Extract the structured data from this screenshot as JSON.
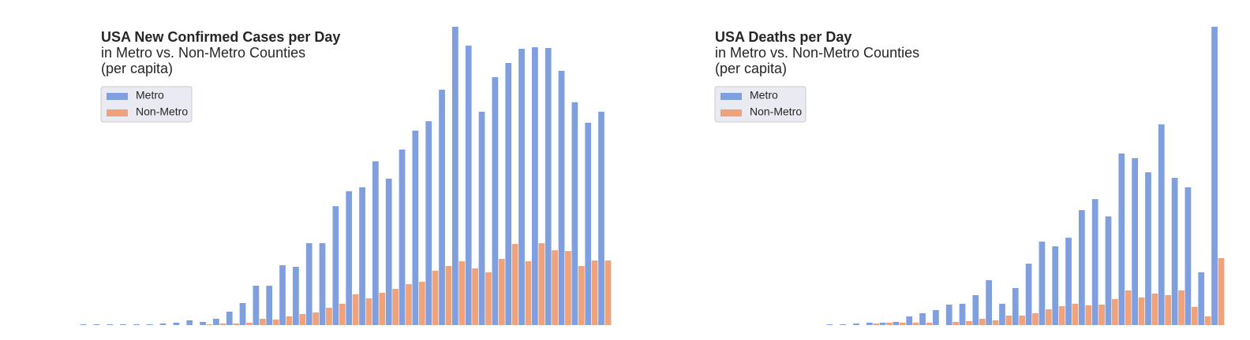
{
  "chart_data": [
    {
      "type": "bar",
      "title": "USA New Confirmed Cases per Day",
      "subtitle": [
        "in Metro vs. Non-Metro Counties",
        "(per capita)"
      ],
      "categories": [
        null,
        null,
        null,
        null,
        null,
        null,
        null,
        null,
        null,
        null,
        null,
        null,
        null,
        null,
        null,
        null,
        null,
        null,
        null,
        null,
        null,
        null,
        null,
        null,
        null,
        null,
        null,
        null,
        null,
        null,
        null,
        null,
        null,
        null,
        null,
        null,
        null,
        null,
        null,
        null,
        null,
        null
      ],
      "series": [
        {
          "name": "Metro",
          "color": "#7f9fdf",
          "values": [
            0,
            0,
            1,
            1,
            1,
            1,
            1,
            1,
            2,
            3,
            6,
            4,
            8,
            17,
            28,
            50,
            50,
            76,
            74,
            104,
            104,
            151,
            170,
            175,
            208,
            186,
            223,
            247,
            259,
            299,
            379,
            355,
            271,
            315,
            333,
            351,
            353,
            352,
            323,
            283,
            257,
            271
          ]
        },
        {
          "name": "Non-Metro",
          "color": "#f0a27a",
          "values": [
            0,
            0,
            0,
            0,
            0,
            0,
            0,
            0,
            0,
            0,
            0,
            1,
            2,
            2,
            3,
            8,
            7,
            11,
            14,
            16,
            22,
            27,
            39,
            34,
            41,
            46,
            52,
            55,
            69,
            75,
            81,
            72,
            67,
            84,
            103,
            81,
            104,
            95,
            94,
            75,
            82,
            82
          ]
        }
      ],
      "ylim": [
        0,
        380
      ],
      "legend": "upper-left"
    },
    {
      "type": "bar",
      "title": "USA Deaths per Day",
      "subtitle": [
        "in Metro vs. Non-Metro Counties",
        "(per capita)"
      ],
      "categories": [
        null,
        null,
        null,
        null,
        null,
        null,
        null,
        null,
        null,
        null,
        null,
        null,
        null,
        null,
        null,
        null,
        null,
        null,
        null,
        null,
        null,
        null,
        null,
        null,
        null,
        null,
        null,
        null,
        null,
        null,
        null,
        null,
        null,
        null,
        null,
        null,
        null,
        null,
        null,
        null,
        null,
        null,
        null,
        null
      ],
      "series": [
        {
          "name": "Metro",
          "color": "#7f9fdf",
          "values": [
            0,
            0,
            0,
            0,
            0,
            0,
            0,
            0,
            0,
            0,
            0,
            0,
            0,
            0,
            1,
            1,
            2,
            3,
            3,
            4,
            11,
            15,
            19,
            26,
            27,
            38,
            57,
            27,
            47,
            78,
            106,
            100,
            111,
            146,
            160,
            138,
            218,
            212,
            194,
            255,
            187,
            175,
            67,
            379
          ]
        },
        {
          "name": "Non-Metro",
          "color": "#f0a27a",
          "values": [
            0,
            0,
            0,
            0,
            0,
            0,
            0,
            0,
            0,
            0,
            0,
            0,
            0,
            0,
            0,
            0,
            0,
            2,
            3,
            3,
            3,
            3,
            0,
            4,
            5,
            8,
            6,
            12,
            12,
            15,
            20,
            24,
            27,
            25,
            26,
            33,
            44,
            35,
            40,
            38,
            44,
            23,
            11,
            85
          ]
        }
      ],
      "ylim": [
        0,
        380
      ],
      "legend": "upper-left"
    }
  ]
}
